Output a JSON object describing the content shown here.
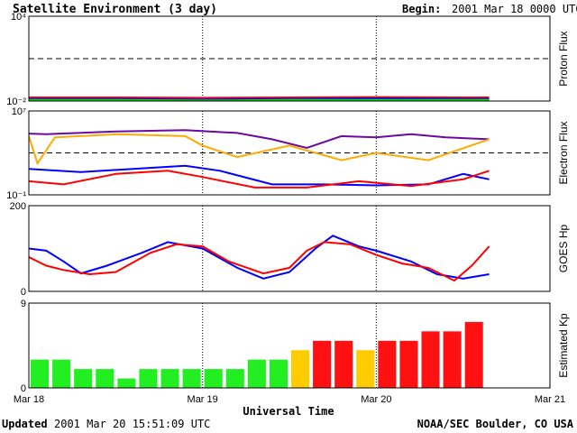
{
  "header": {
    "title": "Satellite Environment (3 day)",
    "begin_label": "Begin:",
    "begin_value": "2001 Mar 18 0000 UTC"
  },
  "footer": {
    "updated_label": "Updated",
    "updated_value": "2001 Mar 20 15:51:09 UTC",
    "credit": "NOAA/SEC Boulder, CO USA"
  },
  "colors": {
    "red": "#ff0000",
    "blue": "#0000ff",
    "green": "#00dd00",
    "purple": "#6a0aa0",
    "orange": "#ffaa00",
    "kp_green": "#22ee22",
    "kp_yellow": "#ffcc00",
    "kp_red": "#ff1111"
  },
  "chart_data": [
    {
      "type": "line",
      "ylabel": "Proton Flux",
      "yscale": "log",
      "ylim": [
        0.01,
        10000
      ],
      "yticks": [
        {
          "value": 10000,
          "label": "10⁴"
        },
        {
          "value": 0.01,
          "label": "10⁻²"
        }
      ],
      "threshold": 10,
      "xlim_days": [
        0,
        3
      ],
      "series": [
        {
          "color": "red",
          "x": [
            0,
            0.5,
            1,
            1.5,
            2,
            2.5,
            2.65
          ],
          "y": [
            0.018,
            0.018,
            0.017,
            0.018,
            0.019,
            0.018,
            0.018
          ]
        },
        {
          "color": "blue",
          "x": [
            0,
            0.5,
            1,
            1.5,
            2,
            2.5,
            2.65
          ],
          "y": [
            0.014,
            0.014,
            0.013,
            0.014,
            0.015,
            0.014,
            0.014
          ]
        },
        {
          "color": "green",
          "x": [
            0,
            0.5,
            1,
            1.5,
            2,
            2.5,
            2.65
          ],
          "y": [
            0.012,
            0.012,
            0.011,
            0.012,
            0.012,
            0.012,
            0.012
          ]
        }
      ]
    },
    {
      "type": "line",
      "ylabel": "Electron Flux",
      "yscale": "log",
      "ylim": [
        0.1,
        10000000
      ],
      "yticks": [
        {
          "value": 10000000,
          "label": "10⁷"
        },
        {
          "value": 0.1,
          "label": "10⁻¹"
        }
      ],
      "threshold": 1000,
      "xlim_days": [
        0,
        3
      ],
      "series": [
        {
          "color": "purple",
          "x": [
            0,
            0.1,
            0.5,
            0.9,
            1.2,
            1.4,
            1.6,
            1.8,
            2.0,
            2.2,
            2.4,
            2.65
          ],
          "y": [
            70000,
            60000,
            110000,
            150000,
            80000,
            20000,
            3000,
            40000,
            30000,
            60000,
            30000,
            20000
          ]
        },
        {
          "color": "orange",
          "x": [
            0,
            0.05,
            0.15,
            0.5,
            0.9,
            1.0,
            1.2,
            1.5,
            1.8,
            2.0,
            2.3,
            2.65
          ],
          "y": [
            40000,
            100,
            30000,
            60000,
            40000,
            5000,
            400,
            5000,
            200,
            1000,
            200,
            20000
          ]
        },
        {
          "color": "blue",
          "x": [
            0,
            0.3,
            0.6,
            0.9,
            1.1,
            1.4,
            1.7,
            2.0,
            2.3,
            2.5,
            2.65
          ],
          "y": [
            30,
            15,
            30,
            60,
            20,
            1,
            1,
            0.8,
            1,
            10,
            3
          ]
        },
        {
          "color": "red",
          "x": [
            0,
            0.2,
            0.5,
            0.8,
            1.0,
            1.3,
            1.6,
            1.9,
            2.2,
            2.5,
            2.65
          ],
          "y": [
            2,
            1,
            10,
            20,
            5,
            0.5,
            0.5,
            2,
            0.7,
            3,
            20
          ]
        }
      ]
    },
    {
      "type": "line",
      "ylabel": "GOES Hp",
      "yscale": "linear",
      "ylim": [
        0,
        200
      ],
      "yticks": [
        {
          "value": 200,
          "label": "200"
        },
        {
          "value": 0,
          "label": "0"
        }
      ],
      "xlim_days": [
        0,
        3
      ],
      "series": [
        {
          "color": "blue",
          "x": [
            0,
            0.1,
            0.2,
            0.3,
            0.45,
            0.65,
            0.8,
            1.0,
            1.2,
            1.35,
            1.5,
            1.65,
            1.75,
            1.9,
            2.0,
            2.2,
            2.35,
            2.5,
            2.65
          ],
          "y": [
            100,
            95,
            70,
            42,
            60,
            90,
            115,
            100,
            55,
            30,
            45,
            100,
            130,
            105,
            95,
            70,
            40,
            30,
            40
          ]
        },
        {
          "color": "red",
          "x": [
            0,
            0.1,
            0.2,
            0.35,
            0.5,
            0.7,
            0.85,
            1.0,
            1.15,
            1.35,
            1.5,
            1.6,
            1.7,
            1.85,
            2.0,
            2.15,
            2.3,
            2.45,
            2.55,
            2.65
          ],
          "y": [
            80,
            60,
            50,
            40,
            45,
            90,
            110,
            105,
            70,
            42,
            55,
            95,
            115,
            110,
            85,
            65,
            55,
            25,
            60,
            105
          ]
        }
      ]
    },
    {
      "type": "bar",
      "ylabel": "Estimated Kp",
      "ylim": [
        0,
        9
      ],
      "yticks": [
        {
          "value": 9,
          "label": "9"
        },
        {
          "value": 0,
          "label": "0"
        }
      ],
      "xlim_days": [
        0,
        3
      ],
      "bar_width_days": 0.125,
      "values": [
        3,
        3,
        2,
        2,
        1,
        2,
        2,
        2,
        2,
        2,
        3,
        3,
        4,
        5,
        5,
        4,
        5,
        5,
        6,
        6,
        7
      ],
      "colors": [
        "kp_green",
        "kp_green",
        "kp_green",
        "kp_green",
        "kp_green",
        "kp_green",
        "kp_green",
        "kp_green",
        "kp_green",
        "kp_green",
        "kp_green",
        "kp_green",
        "kp_yellow",
        "kp_red",
        "kp_red",
        "kp_yellow",
        "kp_red",
        "kp_red",
        "kp_red",
        "kp_red",
        "kp_red"
      ]
    }
  ],
  "xaxis": {
    "label": "Universal Time",
    "ticks": [
      {
        "day": 0,
        "label": "Mar 18"
      },
      {
        "day": 1,
        "label": "Mar 19"
      },
      {
        "day": 2,
        "label": "Mar 20"
      },
      {
        "day": 3,
        "label": "Mar 21"
      }
    ]
  }
}
